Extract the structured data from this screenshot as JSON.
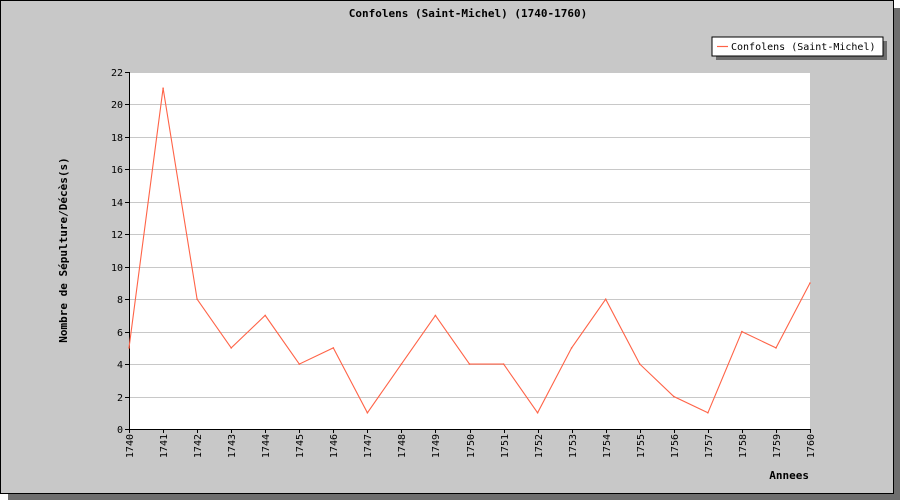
{
  "chart_data": {
    "type": "line",
    "title": "Confolens (Saint-Michel) (1740-1760)",
    "xlabel": "Annees",
    "ylabel": "Nombre de Sépulture/Décès(s)",
    "x": [
      "1740",
      "1741",
      "1742",
      "1743",
      "1744",
      "1745",
      "1746",
      "1747",
      "1748",
      "1749",
      "1750",
      "1751",
      "1752",
      "1753",
      "1754",
      "1755",
      "1756",
      "1757",
      "1758",
      "1759",
      "1760"
    ],
    "series": [
      {
        "name": "Confolens (Saint-Michel)",
        "color": "#ff6347",
        "values": [
          5,
          21,
          8,
          5,
          7,
          4,
          5,
          1,
          4,
          7,
          4,
          4,
          1,
          5,
          8,
          4,
          2,
          1,
          6,
          5,
          9
        ]
      }
    ],
    "ylim": [
      0,
      22
    ],
    "yticks": [
      0,
      2,
      4,
      6,
      8,
      10,
      12,
      14,
      16,
      18,
      20,
      22
    ],
    "grid": true,
    "legend_position": "top-right"
  }
}
